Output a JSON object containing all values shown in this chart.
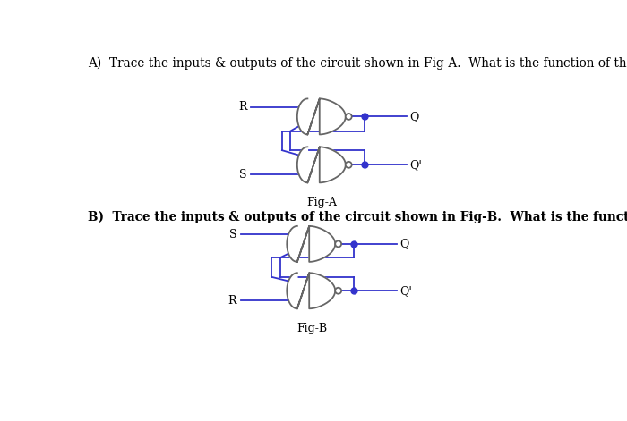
{
  "bg_color": "#ffffff",
  "text_color": "#000000",
  "wire_color": "#3333cc",
  "gate_color": "#666666",
  "title_A": "A)  Trace the inputs & outputs of the circuit shown in Fig-A.  What is the function of this circuit ?",
  "title_B": "B)  Trace the inputs & outputs of the circuit shown in Fig-B.  What is the function of this circuit ?",
  "figA_label": "Fig-A",
  "figB_label": "Fig-B",
  "font_size_title": 9.8,
  "font_size_label": 9.0
}
